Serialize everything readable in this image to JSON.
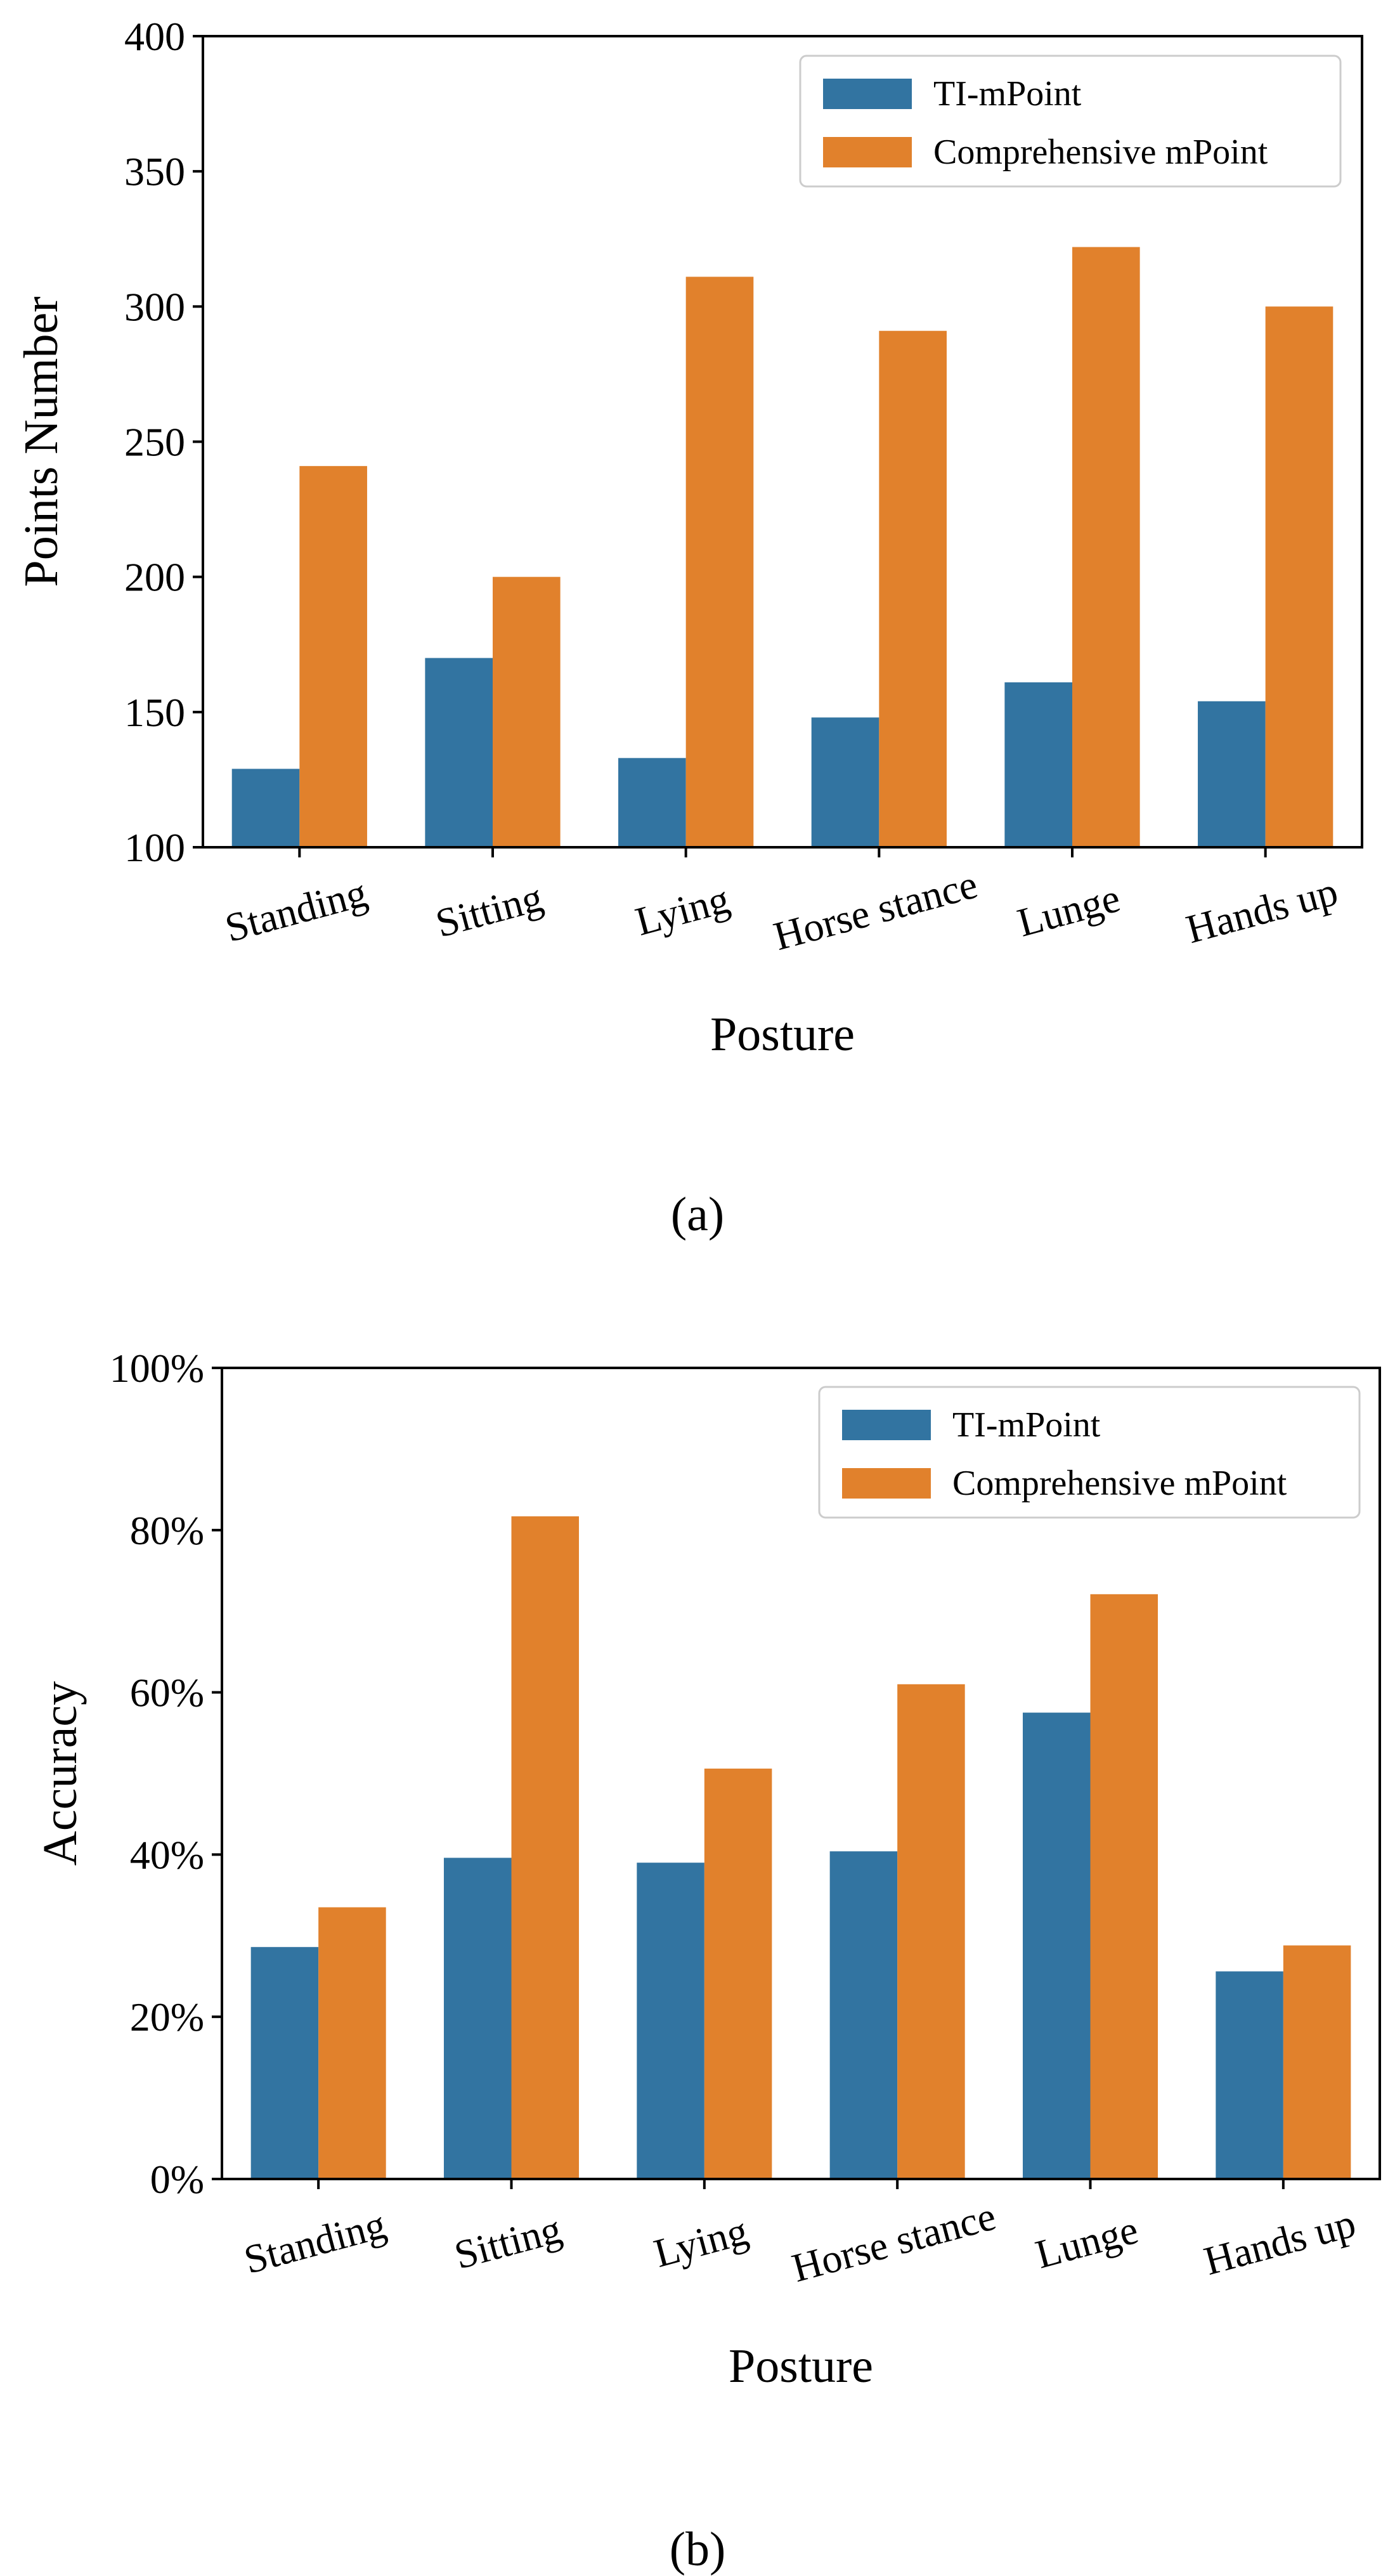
{
  "colors": {
    "series_a": "#3274a1",
    "series_b": "#e1812c"
  },
  "chart_data": [
    {
      "type": "bar",
      "caption": "(a)",
      "categories": [
        "Standing",
        "Sitting",
        "Lying",
        "Horse stance",
        "Lunge",
        "Hands up"
      ],
      "series": [
        {
          "name": "TI-mPoint",
          "values": [
            129,
            170,
            133,
            148,
            161,
            154
          ]
        },
        {
          "name": "Comprehensive mPoint",
          "values": [
            241,
            200,
            311,
            291,
            322,
            300
          ]
        }
      ],
      "xlabel": "Posture",
      "ylabel": "Points Number",
      "ylim": [
        100,
        400
      ],
      "yticks": [
        100,
        150,
        200,
        250,
        300,
        350,
        400
      ],
      "ytick_labels": [
        "100",
        "150",
        "200",
        "250",
        "300",
        "350",
        "400"
      ],
      "legend": "top-right",
      "grid": false
    },
    {
      "type": "bar",
      "caption": "(b)",
      "categories": [
        "Standing",
        "Sitting",
        "Lying",
        "Horse stance",
        "Lunge",
        "Hands up"
      ],
      "series": [
        {
          "name": "TI-mPoint",
          "values": [
            0.286,
            0.396,
            0.39,
            0.404,
            0.575,
            0.256
          ]
        },
        {
          "name": "Comprehensive mPoint",
          "values": [
            0.335,
            0.817,
            0.506,
            0.61,
            0.721,
            0.288
          ]
        }
      ],
      "xlabel": "Posture",
      "ylabel": "Accuracy",
      "ylim": [
        0,
        1
      ],
      "yticks": [
        0,
        0.2,
        0.4,
        0.6,
        0.8,
        1.0
      ],
      "ytick_labels": [
        "0%",
        "20%",
        "40%",
        "60%",
        "80%",
        "100%"
      ],
      "legend": "top-right",
      "grid": false
    }
  ]
}
